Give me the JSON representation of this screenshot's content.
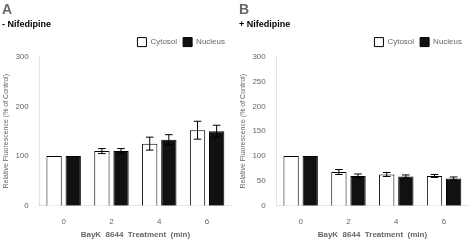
{
  "chart_data": [
    {
      "type": "bar",
      "title": "A",
      "subtitle": "- Nifedipine",
      "categories": [
        "0",
        "2",
        "4",
        "6"
      ],
      "xlabel": "BayK  8644  Treatment  (min)",
      "ylabel": "Relative Fluorescence (% of Control)",
      "series": [
        {
          "name": "Cytosol",
          "color": "#ffffff",
          "values": [
            100,
            110,
            125,
            152
          ],
          "errors": [
            0,
            5,
            13,
            18
          ]
        },
        {
          "name": "Nucleus",
          "color": "#111111",
          "values": [
            100,
            110,
            133,
            150
          ],
          "errors": [
            0,
            5,
            10,
            12
          ]
        }
      ],
      "ylim": [
        0,
        300
      ],
      "yticks": [
        0,
        100,
        200,
        300
      ],
      "grid": false,
      "legend": "upper right"
    },
    {
      "type": "bar",
      "title": "B",
      "subtitle": "+ Nifedipine",
      "categories": [
        "0",
        "2",
        "4",
        "6"
      ],
      "xlabel": "BayK  8644  Treatment  (min)",
      "ylabel": "Relative Fluorescence (% of Control)",
      "series": [
        {
          "name": "Cytosol",
          "color": "#ffffff",
          "values": [
            100,
            68,
            63,
            60
          ],
          "errors": [
            0,
            5,
            4,
            3
          ]
        },
        {
          "name": "Nucleus",
          "color": "#111111",
          "values": [
            100,
            60,
            59,
            55
          ],
          "errors": [
            0,
            4,
            3,
            3
          ]
        }
      ],
      "ylim": [
        0,
        300
      ],
      "yticks": [
        0,
        50,
        100,
        150,
        200,
        250,
        300
      ],
      "grid": false,
      "legend": "upper right"
    }
  ]
}
